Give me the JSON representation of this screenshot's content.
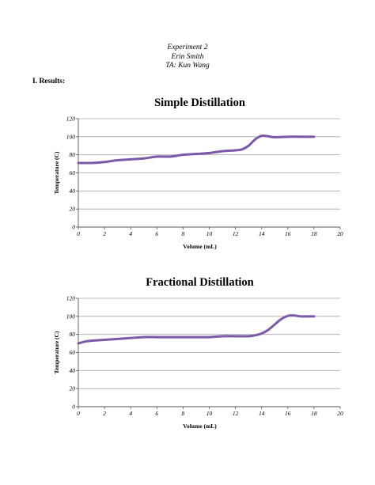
{
  "header": {
    "line1": "Experiment 2",
    "line2": "Erin Smith",
    "line3": "TA: Kun Wang"
  },
  "section_label": "I. Results:",
  "colors": {
    "line": "#7b59a8",
    "grid": "#a8a8a8",
    "axis": "#555555"
  },
  "chart_data": [
    {
      "type": "line",
      "title": "Simple Distillation",
      "xlabel": "Volume (mL)",
      "ylabel": "Temperature (C)",
      "xlim": [
        0,
        20
      ],
      "ylim": [
        0,
        120
      ],
      "xticks": [
        0,
        2,
        4,
        6,
        8,
        10,
        12,
        14,
        16,
        18,
        20
      ],
      "yticks": [
        0,
        20,
        40,
        60,
        80,
        100,
        120
      ],
      "grid": "horizontal",
      "series": [
        {
          "x": [
            0,
            1,
            2,
            3,
            4,
            5,
            6,
            7,
            8,
            9,
            10,
            11,
            12,
            12.5,
            13,
            13.5,
            14,
            14.5,
            15,
            16,
            17,
            18
          ],
          "y": [
            71,
            71,
            72,
            74,
            75,
            76,
            78,
            78,
            80,
            81,
            82,
            84,
            85,
            86,
            90,
            97,
            101,
            100.5,
            99.5,
            100,
            100,
            100
          ]
        }
      ]
    },
    {
      "type": "line",
      "title": "Fractional Distillation",
      "xlabel": "Volume (mL)",
      "ylabel": "Temperature (C)",
      "xlim": [
        0,
        20
      ],
      "ylim": [
        0,
        120
      ],
      "xticks": [
        0,
        2,
        4,
        6,
        8,
        10,
        12,
        14,
        16,
        18,
        20
      ],
      "yticks": [
        0,
        20,
        40,
        60,
        80,
        100,
        120
      ],
      "grid": "horizontal",
      "series": [
        {
          "x": [
            0,
            0.5,
            1,
            2,
            3,
            4,
            5,
            6,
            7,
            8,
            9,
            10,
            11,
            12,
            13,
            13.5,
            14,
            14.5,
            15,
            15.5,
            16,
            16.5,
            17,
            18
          ],
          "y": [
            70,
            72,
            73,
            74,
            75,
            76,
            77,
            77,
            77,
            77,
            77,
            77,
            78,
            78,
            78,
            79,
            81,
            85,
            91,
            97,
            100.5,
            101,
            100,
            100
          ]
        }
      ]
    }
  ]
}
